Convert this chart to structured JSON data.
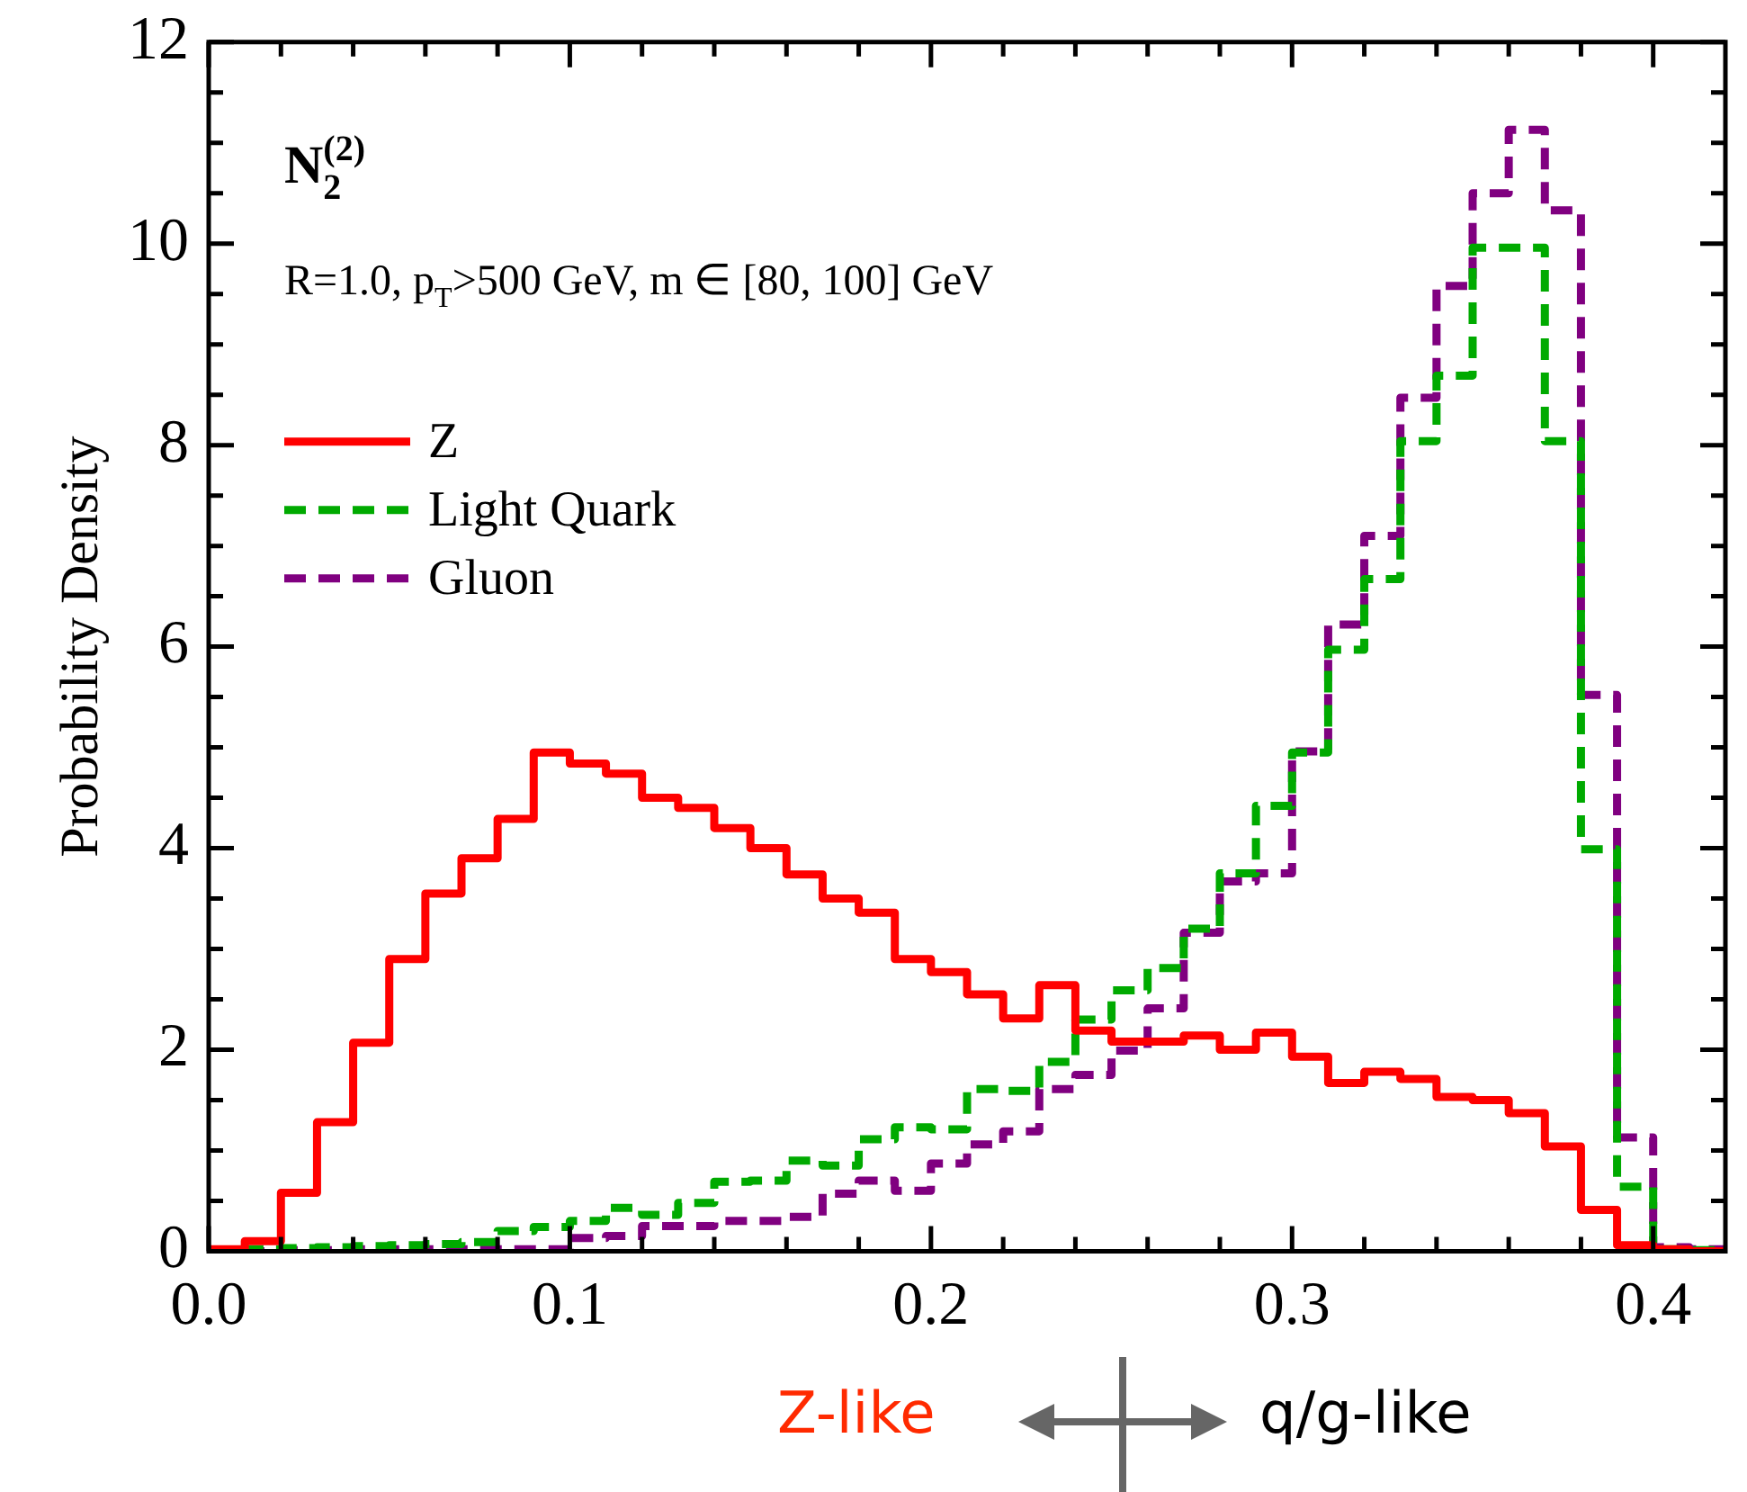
{
  "chart_data": {
    "type": "histogram",
    "ylabel": "Probability Density",
    "annotations": [
      "N$_{2}$$^{(2)}$",
      "R=1.0, p$_{T}$>500 GeV, m ∈ [80, 100] GeV",
      "Z-like",
      "q/g-like"
    ],
    "bins": [
      0,
      0.01,
      0.02,
      0.03,
      0.04,
      0.05,
      0.06,
      0.07,
      0.08,
      0.09,
      0.1,
      0.11,
      0.12,
      0.13,
      0.14,
      0.15,
      0.16,
      0.17,
      0.18,
      0.19,
      0.2,
      0.21,
      0.22,
      0.23,
      0.24,
      0.25,
      0.26,
      0.27,
      0.28,
      0.29,
      0.3,
      0.31,
      0.32,
      0.33,
      0.34,
      0.35,
      0.36,
      0.37,
      0.38,
      0.39,
      0.4,
      0.41,
      0.42
    ],
    "series": [
      {
        "name": "Z",
        "color": "#ff0000",
        "line_style": "solid",
        "values": [
          0.02,
          0.1,
          0.58,
          1.28,
          2.07,
          2.9,
          3.55,
          3.9,
          4.29,
          4.95,
          4.84,
          4.74,
          4.5,
          4.4,
          4.2,
          4.0,
          3.74,
          3.5,
          3.36,
          2.9,
          2.77,
          2.55,
          2.31,
          2.64,
          2.19,
          2.08,
          2.08,
          2.14,
          2.0,
          2.17,
          1.93,
          1.67,
          1.78,
          1.71,
          1.53,
          1.5,
          1.37,
          1.04,
          0.41,
          0.06,
          0.02,
          0.0
        ]
      },
      {
        "name": "Light Quark",
        "color": "#00aa00",
        "line_style": "dashed",
        "values": [
          0.01,
          0.02,
          0.03,
          0.04,
          0.05,
          0.06,
          0.07,
          0.09,
          0.2,
          0.24,
          0.3,
          0.43,
          0.36,
          0.48,
          0.69,
          0.7,
          0.9,
          0.85,
          1.11,
          1.23,
          1.21,
          1.61,
          1.59,
          1.88,
          2.3,
          2.59,
          2.81,
          3.2,
          3.75,
          4.42,
          4.95,
          5.97,
          6.67,
          8.04,
          8.69,
          9.96,
          9.96,
          8.04,
          3.99,
          0.64,
          0.02,
          0.01
        ]
      },
      {
        "name": "Gluon",
        "color": "#800080",
        "line_style": "dashed",
        "values": [
          0.0,
          0.0,
          0.01,
          0.01,
          0.02,
          0.02,
          0.02,
          0.02,
          0.02,
          0.02,
          0.13,
          0.15,
          0.25,
          0.25,
          0.3,
          0.3,
          0.34,
          0.57,
          0.7,
          0.6,
          0.87,
          1.06,
          1.19,
          1.61,
          1.75,
          1.99,
          2.41,
          3.16,
          3.67,
          3.75,
          4.96,
          6.22,
          7.1,
          8.47,
          9.58,
          10.5,
          11.13,
          10.33,
          5.52,
          1.13,
          0.04,
          0.02
        ]
      }
    ],
    "xlim": [
      0,
      0.42
    ],
    "xticks": [
      {
        "value": 0,
        "label": "0.0"
      },
      {
        "value": 0.02,
        "label": null
      },
      {
        "value": 0.04,
        "label": null
      },
      {
        "value": 0.06,
        "label": null
      },
      {
        "value": 0.08,
        "label": null
      },
      {
        "value": 0.1,
        "label": "0.1"
      },
      {
        "value": 0.12,
        "label": null
      },
      {
        "value": 0.14,
        "label": null
      },
      {
        "value": 0.16,
        "label": null
      },
      {
        "value": 0.18,
        "label": null
      },
      {
        "value": 0.2,
        "label": "0.2"
      },
      {
        "value": 0.22,
        "label": null
      },
      {
        "value": 0.24,
        "label": null
      },
      {
        "value": 0.26,
        "label": null
      },
      {
        "value": 0.28,
        "label": null
      },
      {
        "value": 0.3,
        "label": "0.3"
      },
      {
        "value": 0.32,
        "label": null
      },
      {
        "value": 0.34,
        "label": null
      },
      {
        "value": 0.36,
        "label": null
      },
      {
        "value": 0.38,
        "label": null
      },
      {
        "value": 0.4,
        "label": "0.4"
      }
    ],
    "ylim": [
      0,
      12
    ],
    "yticks": [
      0,
      {
        "value": 0.5,
        "label": null
      },
      {
        "value": 1,
        "label": null
      },
      {
        "value": 1.5,
        "label": null
      },
      2,
      {
        "value": 2.5,
        "label": null
      },
      {
        "value": 3,
        "label": null
      },
      {
        "value": 3.5,
        "label": null
      },
      4,
      {
        "value": 4.5,
        "label": null
      },
      {
        "value": 5,
        "label": null
      },
      {
        "value": 5.5,
        "label": null
      },
      6,
      {
        "value": 6.5,
        "label": null
      },
      {
        "value": 7,
        "label": null
      },
      {
        "value": 7.5,
        "label": null
      },
      8,
      {
        "value": 8.5,
        "label": null
      },
      {
        "value": 9,
        "label": null
      },
      {
        "value": 9.5,
        "label": null
      },
      10,
      {
        "value": 10.5,
        "label": null
      },
      {
        "value": 11,
        "label": null
      },
      {
        "value": 11.5,
        "label": null
      },
      12
    ],
    "grid": false,
    "legend": "top left"
  }
}
